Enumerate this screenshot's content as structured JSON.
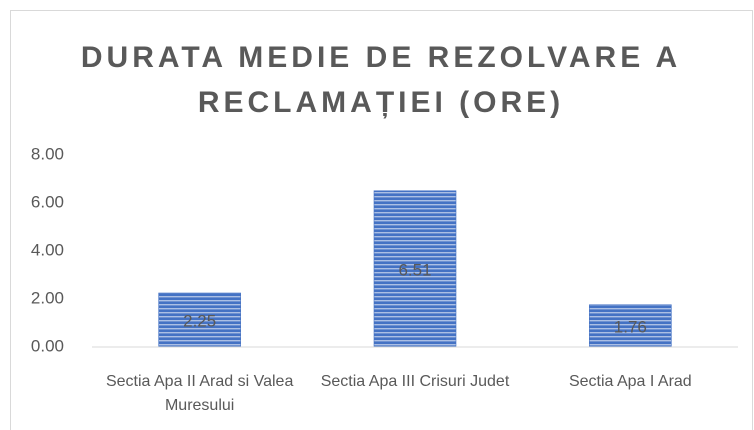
{
  "chart_data": {
    "type": "bar",
    "title": "DURATA MEDIE DE REZOLVARE A RECLAMAȚIEI (ORE)",
    "categories": [
      "Sectia Apa II Arad si Valea Muresului",
      "Sectia Apa III Crisuri Judet",
      "Sectia Apa I Arad"
    ],
    "values": [
      2.25,
      6.51,
      1.76
    ],
    "color": "#4472c4",
    "ylim": [
      0,
      8
    ],
    "yticks": [
      {
        "value": 0,
        "label": "0.00"
      },
      {
        "value": 2,
        "label": "2.00"
      },
      {
        "value": 4,
        "label": "4.00"
      },
      {
        "value": 6,
        "label": "6.00"
      },
      {
        "value": 8,
        "label": "8.00"
      }
    ],
    "grid": false
  }
}
